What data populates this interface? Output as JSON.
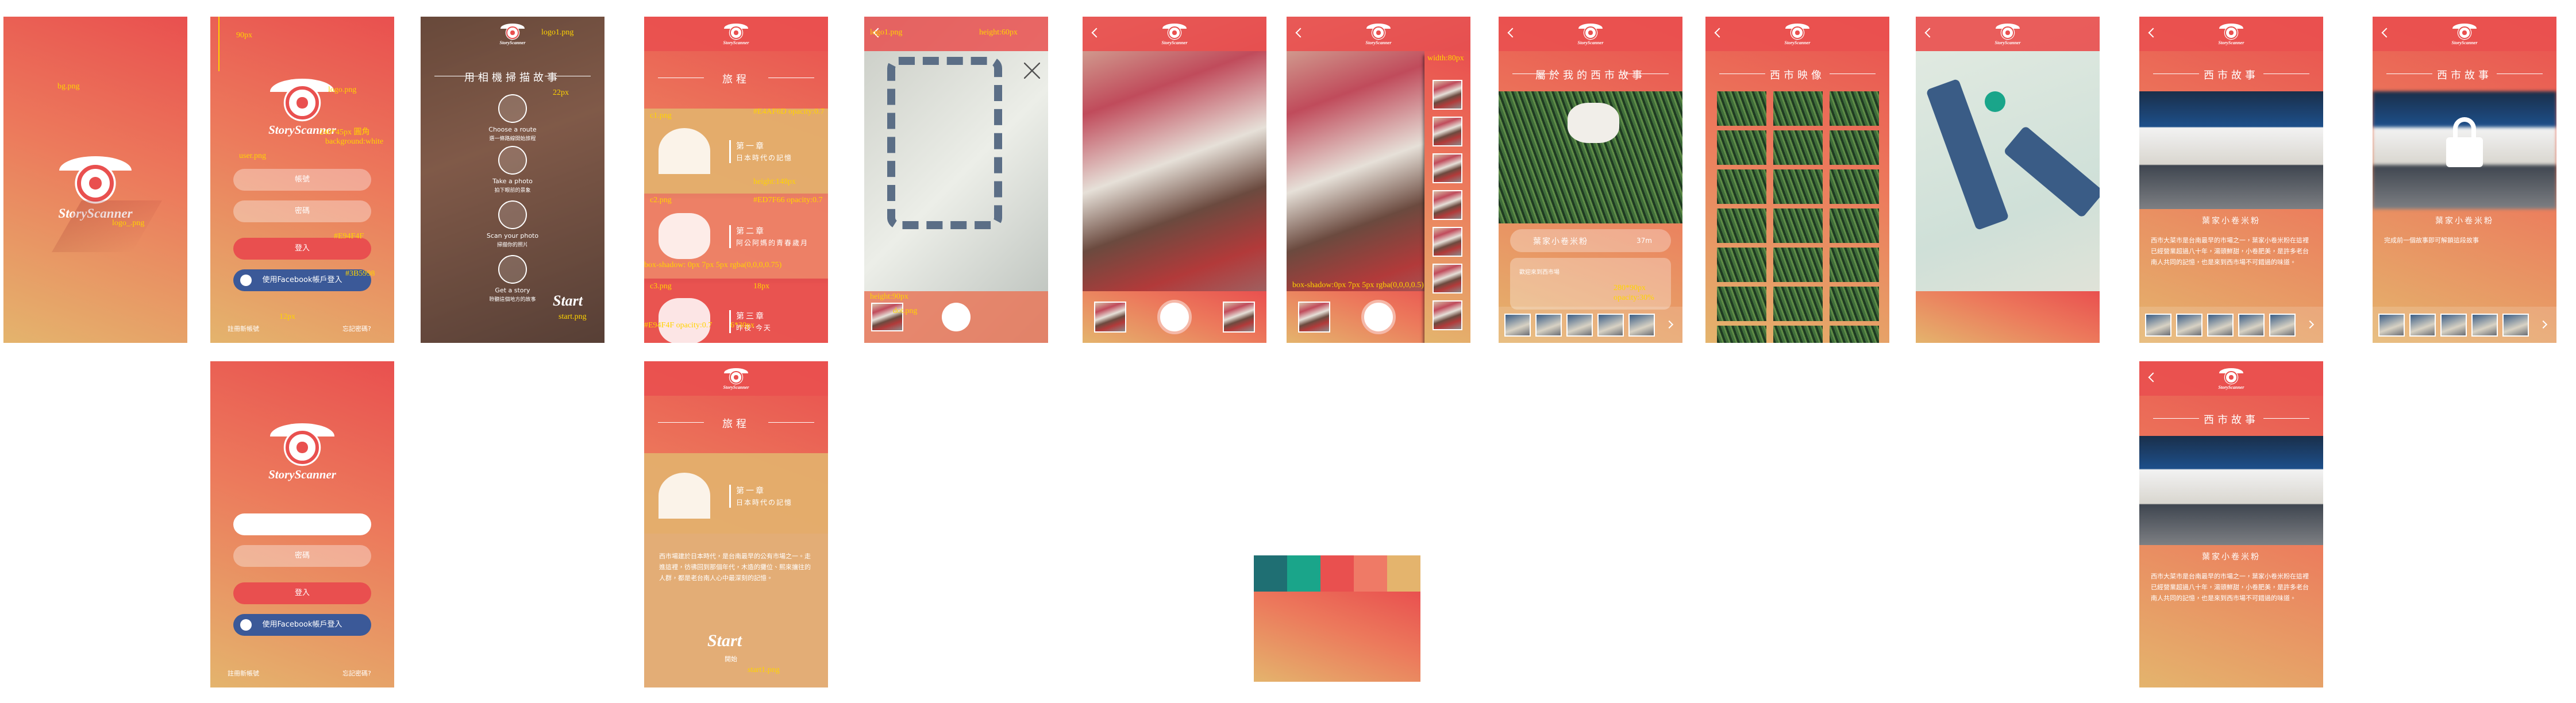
{
  "brand": "StoryScanner",
  "splash": {
    "notes": [
      "bg.png",
      "logo_.png"
    ]
  },
  "login": {
    "account": "帳號",
    "password": "密碼",
    "login": "登入",
    "facebook": "使用Facebook帳戶登入",
    "register": "註冊新帳號",
    "forgot": "忘記密碼?",
    "notes": [
      "90px",
      "logo.png",
      "240*45px 圓角",
      "background:white",
      "user.png",
      "#E94F4F",
      "#3B5998",
      "12px"
    ]
  },
  "tutorial": {
    "title": "用相機掃描故事",
    "steps": [
      {
        "en": "Choose a route",
        "zh": "選一條路線開始旅程"
      },
      {
        "en": "Take a photo",
        "zh": "拍下眼前的景象"
      },
      {
        "en": "Scan your photo",
        "zh": "掃描你的照片"
      },
      {
        "en": "Get a story",
        "zh": "聆聽這個地方的故事"
      }
    ],
    "start": "Start",
    "notes": [
      "logo1.png",
      "22px",
      "start.png"
    ]
  },
  "journey": {
    "title": "旅程",
    "chapters": [
      {
        "name": "第一章",
        "desc": "日本時代の記憶"
      },
      {
        "name": "第二章",
        "desc": "阿公阿媽的青春歲月"
      },
      {
        "name": "第三章",
        "desc": "昨夜‧今天"
      }
    ],
    "notes": [
      "c1.png",
      "#E4AF6D opacity:0.7",
      "height:148px",
      "c2.png",
      "#ED7F66 opacity:0.7",
      "box-shadow: 0px 7px 5px rgba(0,0,0,0.75)",
      "c3.png",
      "18px",
      "#E94F4F opacity:0.7",
      "6*30px"
    ]
  },
  "journey_detail": {
    "body": "西市場建於日本時代，是台南最早的公有市場之一。走進這裡，彷彿回到那個年代，木造的攤位、熙來攘往的人群，都是老台南人心中最深刻的記憶。",
    "start": "Start",
    "start_zh": "開始",
    "note": "start1.png"
  },
  "map": {
    "notes": [
      "logo1.png",
      "height:60px",
      "height:90px",
      "dot.png"
    ]
  },
  "camera": {
    "notes": [
      "width:80px",
      "box-shadow:0px 7px 5px rgba(0,0,0,0.5)"
    ]
  },
  "my_story": {
    "title": "屬於我的西市故事",
    "store": "葉家小卷米粉",
    "distance": "37m",
    "greeting": "歡迎來到西市場",
    "notes": [
      "280*90px",
      "opacity:30%"
    ]
  },
  "gallery": {
    "title": "西市映像"
  },
  "story": {
    "title": "西市故事",
    "store": "葉家小卷米粉",
    "body": "西市大菜市是台南最早的市場之一，葉家小卷米粉在這裡已經營業超過八十年，湯頭鮮甜，小卷肥美，是許多老台南人共同的記憶，也是來到西市場不可錯過的味道。",
    "locked": "完成前一個故事即可解鎖這段故事"
  },
  "palette": [
    "#1f6f73",
    "#1aa58a",
    "#e9504f",
    "#ef7a66",
    "#e4b46d"
  ]
}
